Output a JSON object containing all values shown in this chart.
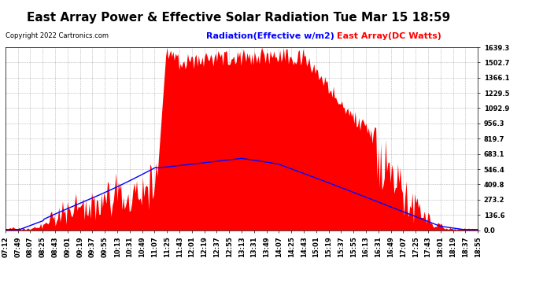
{
  "title": "East Array Power & Effective Solar Radiation Tue Mar 15 18:59",
  "copyright": "Copyright 2022 Cartronics.com",
  "legend_radiation": "Radiation(Effective w/m2)",
  "legend_array": "East Array(DC Watts)",
  "legend_radiation_color": "#0000ff",
  "legend_array_color": "#ff0000",
  "y_ticks": [
    0.0,
    136.6,
    273.2,
    409.8,
    546.4,
    683.1,
    819.7,
    956.3,
    1092.9,
    1229.5,
    1366.1,
    1502.7,
    1639.3
  ],
  "y_max": 1639.3,
  "background_color": "#ffffff",
  "plot_bg_color": "#ffffff",
  "grid_color": "#888888",
  "fill_color": "#ff0000",
  "line_color": "#0000ff",
  "title_fontsize": 11,
  "copyright_fontsize": 6,
  "legend_fontsize": 8,
  "tick_fontsize": 6
}
